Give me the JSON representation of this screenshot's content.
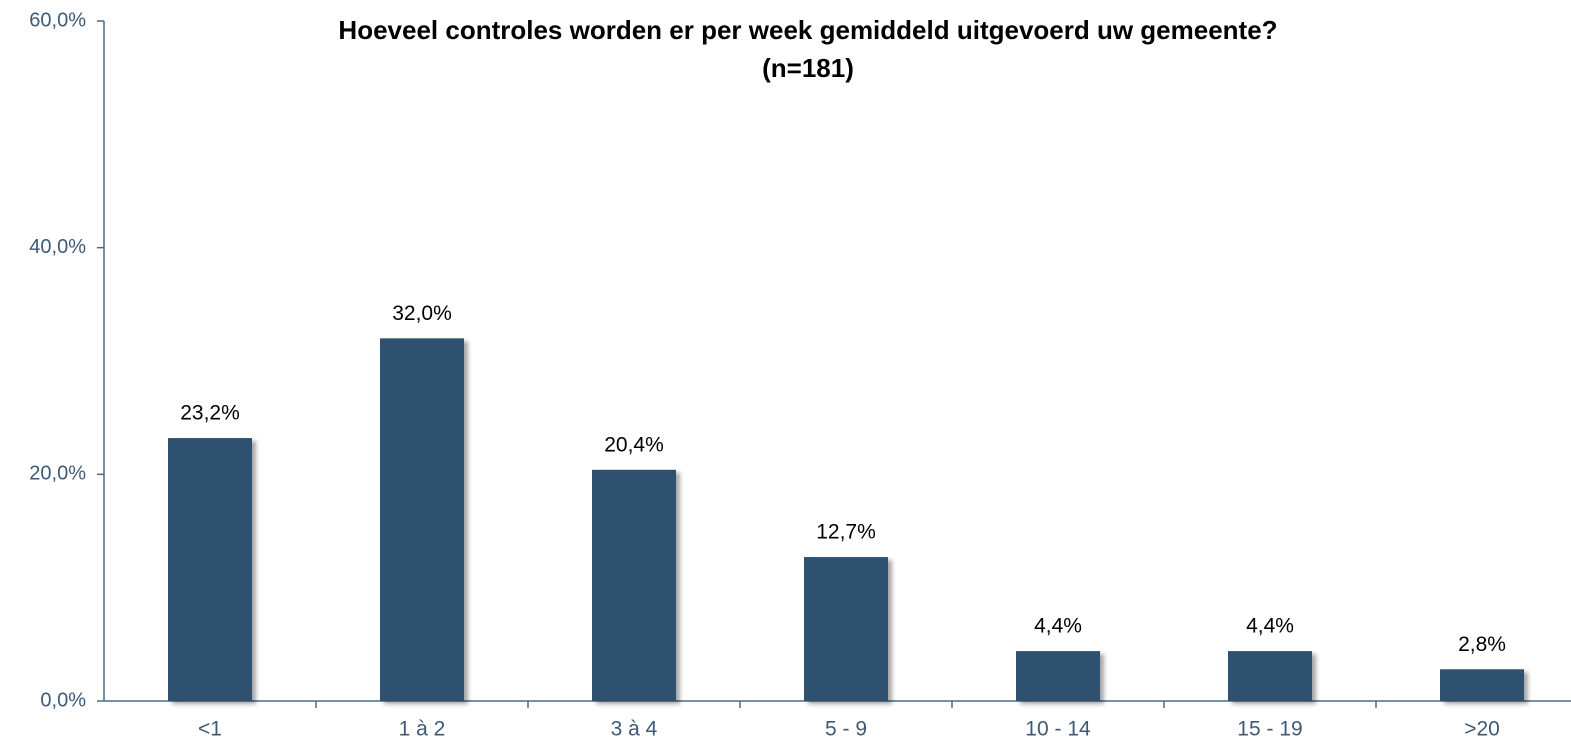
{
  "chart_data": {
    "type": "bar",
    "title": "Hoeveel controles worden  er per week gemiddeld uitgevoerd uw gemeente?",
    "subtitle": "(n=181)",
    "categories": [
      "<1",
      "1 à 2",
      "3 à 4",
      "5 - 9",
      "10 - 14",
      "15 - 19",
      ">20"
    ],
    "values": [
      23.2,
      32.0,
      20.4,
      12.7,
      4.4,
      4.4,
      2.8
    ],
    "value_labels": [
      "23,2%",
      "32,0%",
      "20,4%",
      "12,7%",
      "4,4%",
      "4,4%",
      "2,8%"
    ],
    "color": "#2e5170",
    "ylim": [
      0,
      60
    ],
    "yticks": [
      {
        "value": 0,
        "label": "0,0%"
      },
      {
        "value": 20,
        "label": "20,0%"
      },
      {
        "value": 40,
        "label": "40,0%"
      },
      {
        "value": 60,
        "label": "60,0%"
      }
    ],
    "grid": false
  }
}
